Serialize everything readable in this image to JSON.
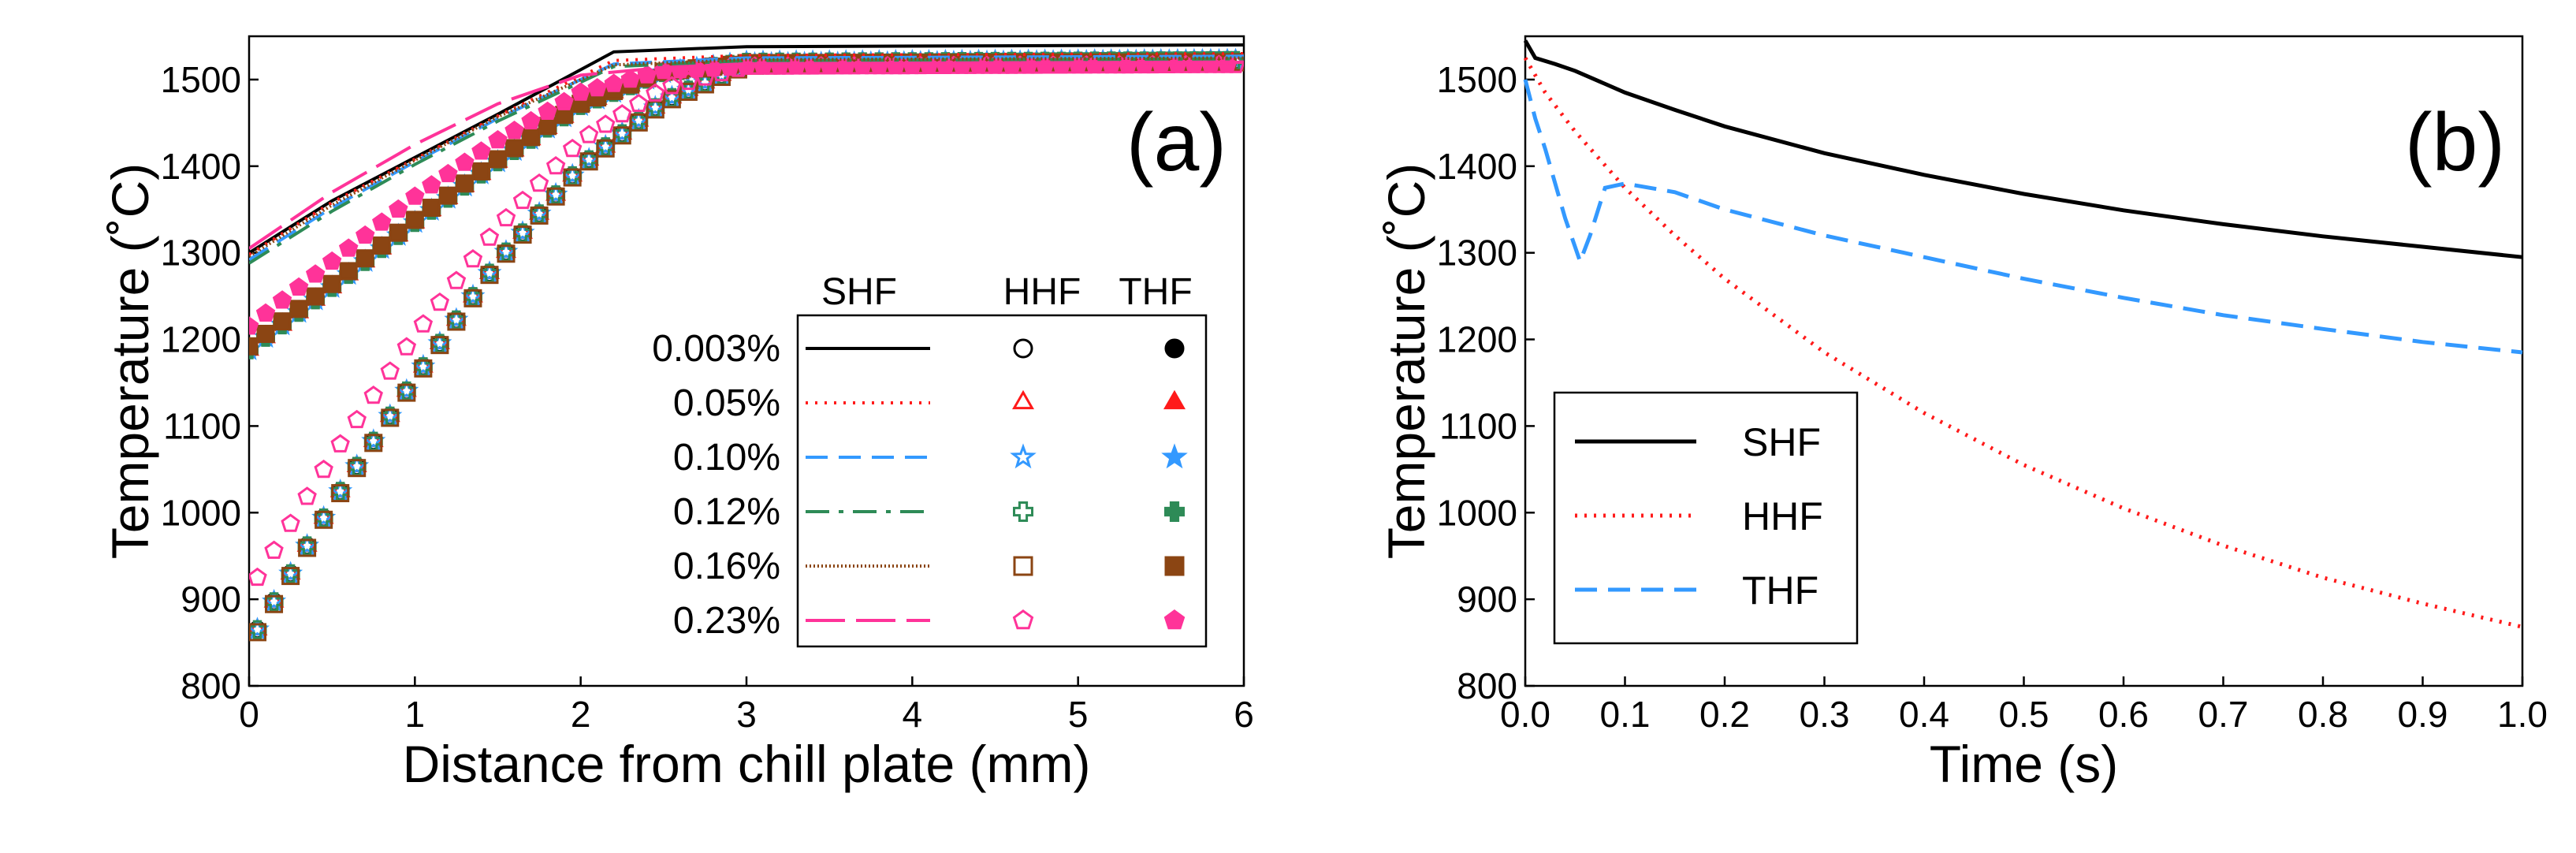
{
  "chart_data": [
    {
      "type": "line",
      "panel_label": "(a)",
      "xlabel": "Distance from chill plate (mm)",
      "ylabel": "Temperature (˚C)",
      "xlim": [
        0,
        6
      ],
      "ylim": [
        800,
        1550
      ],
      "x_ticks": [
        "0",
        "1",
        "2",
        "3",
        "4",
        "5",
        "6"
      ],
      "y_ticks": [
        "800",
        "900",
        "1000",
        "1100",
        "1200",
        "1300",
        "1400",
        "1500"
      ],
      "legend_headers": [
        "SHF",
        "HHF",
        "THF"
      ],
      "series": [
        {
          "name": "0.003%",
          "color": "#000000",
          "line_style": "solid",
          "hhf_marker": "circle-open",
          "thf_marker": "circle-filled",
          "shf": [
            [
              0,
              1300
            ],
            [
              0.5,
              1360
            ],
            [
              1,
              1410
            ],
            [
              1.5,
              1460
            ],
            [
              2.2,
              1532
            ],
            [
              3,
              1538
            ],
            [
              6,
              1540
            ]
          ],
          "hhf": [
            [
              0.05,
              865
            ],
            [
              0.5,
              1010
            ],
            [
              1,
              1155
            ],
            [
              1.5,
              1290
            ],
            [
              2,
              1400
            ],
            [
              2.5,
              1475
            ],
            [
              3,
              1518
            ],
            [
              6,
              1522
            ]
          ],
          "thf": [
            [
              0,
              1188
            ],
            [
              0.5,
              1260
            ],
            [
              1,
              1335
            ],
            [
              1.5,
              1405
            ],
            [
              2,
              1470
            ],
            [
              2.5,
              1508
            ],
            [
              3,
              1520
            ],
            [
              6,
              1522
            ]
          ]
        },
        {
          "name": "0.05%",
          "color": "#ff1a1a",
          "line_style": "dotted",
          "hhf_marker": "triangle-open",
          "thf_marker": "triangle-filled",
          "shf": [
            [
              0,
              1298
            ],
            [
              0.5,
              1358
            ],
            [
              1,
              1408
            ],
            [
              1.5,
              1458
            ],
            [
              2.2,
              1522
            ],
            [
              3,
              1528
            ],
            [
              6,
              1530
            ]
          ],
          "hhf": [
            [
              0.05,
              865
            ],
            [
              0.5,
              1010
            ],
            [
              1,
              1155
            ],
            [
              1.5,
              1290
            ],
            [
              2,
              1400
            ],
            [
              2.5,
              1475
            ],
            [
              3,
              1518
            ],
            [
              6,
              1522
            ]
          ],
          "thf": [
            [
              0,
              1188
            ],
            [
              0.5,
              1260
            ],
            [
              1,
              1335
            ],
            [
              1.5,
              1405
            ],
            [
              2,
              1470
            ],
            [
              2.5,
              1508
            ],
            [
              3,
              1520
            ],
            [
              6,
              1522
            ]
          ]
        },
        {
          "name": "0.10%",
          "color": "#3399ff",
          "line_style": "dashed",
          "hhf_marker": "star-open",
          "thf_marker": "star-filled",
          "shf": [
            [
              0,
              1292
            ],
            [
              0.5,
              1352
            ],
            [
              1,
              1405
            ],
            [
              1.5,
              1455
            ],
            [
              2.2,
              1518
            ],
            [
              3,
              1525
            ],
            [
              6,
              1527
            ]
          ],
          "hhf": [
            [
              0.05,
              865
            ],
            [
              0.5,
              1010
            ],
            [
              1,
              1155
            ],
            [
              1.5,
              1290
            ],
            [
              2,
              1400
            ],
            [
              2.5,
              1475
            ],
            [
              3,
              1518
            ],
            [
              6,
              1522
            ]
          ],
          "thf": [
            [
              0,
              1188
            ],
            [
              0.5,
              1260
            ],
            [
              1,
              1335
            ],
            [
              1.5,
              1405
            ],
            [
              2,
              1470
            ],
            [
              2.5,
              1508
            ],
            [
              3,
              1520
            ],
            [
              6,
              1522
            ]
          ]
        },
        {
          "name": "0.12%",
          "color": "#2e8b57",
          "line_style": "dashdot",
          "hhf_marker": "plus-open",
          "thf_marker": "plus-filled",
          "shf": [
            [
              0,
              1288
            ],
            [
              0.5,
              1348
            ],
            [
              1,
              1402
            ],
            [
              1.5,
              1452
            ],
            [
              2.2,
              1515
            ],
            [
              3,
              1522
            ],
            [
              6,
              1524
            ]
          ],
          "hhf": [
            [
              0.05,
              865
            ],
            [
              0.5,
              1010
            ],
            [
              1,
              1155
            ],
            [
              1.5,
              1290
            ],
            [
              2,
              1400
            ],
            [
              2.5,
              1475
            ],
            [
              3,
              1518
            ],
            [
              6,
              1522
            ]
          ],
          "thf": [
            [
              0,
              1188
            ],
            [
              0.5,
              1260
            ],
            [
              1,
              1335
            ],
            [
              1.5,
              1405
            ],
            [
              2,
              1470
            ],
            [
              2.5,
              1508
            ],
            [
              3,
              1520
            ],
            [
              6,
              1522
            ]
          ]
        },
        {
          "name": "0.16%",
          "color": "#8b4513",
          "line_style": "fine-dotted",
          "hhf_marker": "square-open",
          "thf_marker": "square-filled",
          "shf": [
            [
              0,
              1296
            ],
            [
              0.5,
              1355
            ],
            [
              1,
              1407
            ],
            [
              1.5,
              1457
            ],
            [
              2.2,
              1517
            ],
            [
              3,
              1523
            ],
            [
              6,
              1525
            ]
          ],
          "hhf": [
            [
              0.05,
              862
            ],
            [
              0.5,
              1008
            ],
            [
              1,
              1153
            ],
            [
              1.5,
              1288
            ],
            [
              2,
              1398
            ],
            [
              2.5,
              1473
            ],
            [
              3,
              1516
            ],
            [
              6,
              1520
            ]
          ],
          "thf": [
            [
              0,
              1192
            ],
            [
              0.5,
              1264
            ],
            [
              1,
              1338
            ],
            [
              1.5,
              1408
            ],
            [
              2,
              1472
            ],
            [
              2.5,
              1509
            ],
            [
              3,
              1519
            ],
            [
              6,
              1520
            ]
          ]
        },
        {
          "name": "0.23%",
          "color": "#ff3399",
          "line_style": "longdash",
          "hhf_marker": "pentagon-open",
          "thf_marker": "pentagon-filled",
          "shf": [
            [
              0,
              1305
            ],
            [
              0.5,
              1370
            ],
            [
              1,
              1425
            ],
            [
              1.5,
              1472
            ],
            [
              2,
              1505
            ],
            [
              2.5,
              1514
            ],
            [
              3,
              1518
            ],
            [
              6,
              1520
            ]
          ],
          "hhf": [
            [
              0.05,
              925
            ],
            [
              0.5,
              1065
            ],
            [
              1,
              1205
            ],
            [
              1.5,
              1330
            ],
            [
              2,
              1430
            ],
            [
              2.5,
              1490
            ],
            [
              3,
              1515
            ],
            [
              6,
              1517
            ]
          ],
          "thf": [
            [
              0,
              1215
            ],
            [
              0.5,
              1290
            ],
            [
              1,
              1365
            ],
            [
              1.5,
              1430
            ],
            [
              2,
              1485
            ],
            [
              2.5,
              1510
            ],
            [
              3,
              1515
            ],
            [
              6,
              1517
            ]
          ]
        }
      ]
    },
    {
      "type": "line",
      "panel_label": "(b)",
      "xlabel": "Time (s)",
      "ylabel": "Temperature (˚C)",
      "xlim": [
        0,
        1.0
      ],
      "ylim": [
        800,
        1550
      ],
      "x_ticks": [
        "0.0",
        "0.1",
        "0.2",
        "0.3",
        "0.4",
        "0.5",
        "0.6",
        "0.7",
        "0.8",
        "0.9",
        "1.0"
      ],
      "y_ticks": [
        "800",
        "900",
        "1000",
        "1100",
        "1200",
        "1300",
        "1400",
        "1500"
      ],
      "series": [
        {
          "name": "SHF",
          "color": "#000000",
          "line_style": "solid",
          "points": [
            [
              0,
              1545
            ],
            [
              0.01,
              1525
            ],
            [
              0.03,
              1518
            ],
            [
              0.05,
              1510
            ],
            [
              0.1,
              1485
            ],
            [
              0.15,
              1465
            ],
            [
              0.2,
              1446
            ],
            [
              0.3,
              1415
            ],
            [
              0.4,
              1390
            ],
            [
              0.5,
              1368
            ],
            [
              0.6,
              1349
            ],
            [
              0.7,
              1333
            ],
            [
              0.8,
              1319
            ],
            [
              0.9,
              1307
            ],
            [
              1.0,
              1295
            ]
          ]
        },
        {
          "name": "HHF",
          "color": "#ff1a1a",
          "line_style": "dotted",
          "points": [
            [
              0,
              1525
            ],
            [
              0.02,
              1485
            ],
            [
              0.05,
              1440
            ],
            [
              0.1,
              1375
            ],
            [
              0.15,
              1320
            ],
            [
              0.2,
              1270
            ],
            [
              0.3,
              1185
            ],
            [
              0.4,
              1115
            ],
            [
              0.5,
              1055
            ],
            [
              0.6,
              1005
            ],
            [
              0.7,
              962
            ],
            [
              0.8,
              925
            ],
            [
              0.9,
              895
            ],
            [
              1.0,
              868
            ]
          ]
        },
        {
          "name": "THF",
          "color": "#3399ff",
          "line_style": "dashed",
          "points": [
            [
              0,
              1500
            ],
            [
              0.01,
              1455
            ],
            [
              0.02,
              1420
            ],
            [
              0.04,
              1340
            ],
            [
              0.055,
              1290
            ],
            [
              0.065,
              1320
            ],
            [
              0.08,
              1375
            ],
            [
              0.1,
              1380
            ],
            [
              0.15,
              1370
            ],
            [
              0.2,
              1350
            ],
            [
              0.3,
              1320
            ],
            [
              0.4,
              1295
            ],
            [
              0.5,
              1270
            ],
            [
              0.6,
              1248
            ],
            [
              0.7,
              1228
            ],
            [
              0.8,
              1212
            ],
            [
              0.9,
              1197
            ],
            [
              1.0,
              1185
            ]
          ]
        }
      ]
    }
  ]
}
